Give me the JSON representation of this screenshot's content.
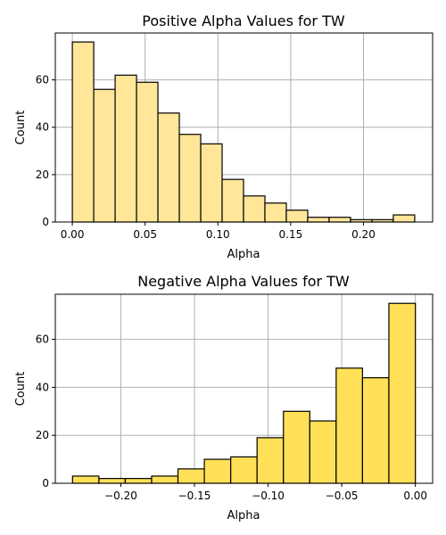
{
  "chart_data": [
    {
      "type": "bar",
      "title": "Positive Alpha Values for TW",
      "xlabel": "Alpha",
      "ylabel": "Count",
      "color": "#FFE699",
      "edge_color": "#000000",
      "grid": true,
      "xlim": [
        -0.0117,
        0.2475
      ],
      "ylim": [
        0,
        79.8
      ],
      "xticks": [
        0.0,
        0.05,
        0.1,
        0.15,
        0.2
      ],
      "xtick_labels": [
        "0.00",
        "0.05",
        "0.10",
        "0.15",
        "0.20"
      ],
      "yticks": [
        0,
        20,
        40,
        60
      ],
      "ytick_labels": [
        "0",
        "20",
        "40",
        "60"
      ],
      "bin_edges": [
        0.0,
        0.0147,
        0.0294,
        0.0441,
        0.0588,
        0.0735,
        0.0882,
        0.1029,
        0.1176,
        0.1323,
        0.147,
        0.1617,
        0.1764,
        0.1911,
        0.2058,
        0.2205,
        0.2352
      ],
      "values": [
        76,
        56,
        62,
        59,
        46,
        37,
        33,
        18,
        11,
        8,
        5,
        2,
        2,
        1,
        1,
        3
      ]
    },
    {
      "type": "bar",
      "title": "Negative Alpha Values for TW",
      "xlabel": "Alpha",
      "ylabel": "Count",
      "color": "#FFE057",
      "edge_color": "#000000",
      "grid": true,
      "xlim": [
        -0.2445,
        0.0117
      ],
      "ylim": [
        0,
        78.8
      ],
      "xticks": [
        -0.2,
        -0.15,
        -0.1,
        -0.05,
        0.0
      ],
      "xtick_labels": [
        "−0.20",
        "−0.15",
        "−0.10",
        "−0.05",
        "0.00"
      ],
      "yticks": [
        0,
        20,
        40,
        60
      ],
      "ytick_labels": [
        "0",
        "20",
        "40",
        "60"
      ],
      "bin_edges": [
        -0.2328,
        -0.2149,
        -0.197,
        -0.1791,
        -0.1612,
        -0.1433,
        -0.1254,
        -0.1075,
        -0.0896,
        -0.0717,
        -0.0538,
        -0.0359,
        -0.018,
        0.0
      ],
      "values": [
        3,
        2,
        2,
        3,
        6,
        10,
        11,
        19,
        30,
        26,
        48,
        44,
        75
      ]
    }
  ]
}
